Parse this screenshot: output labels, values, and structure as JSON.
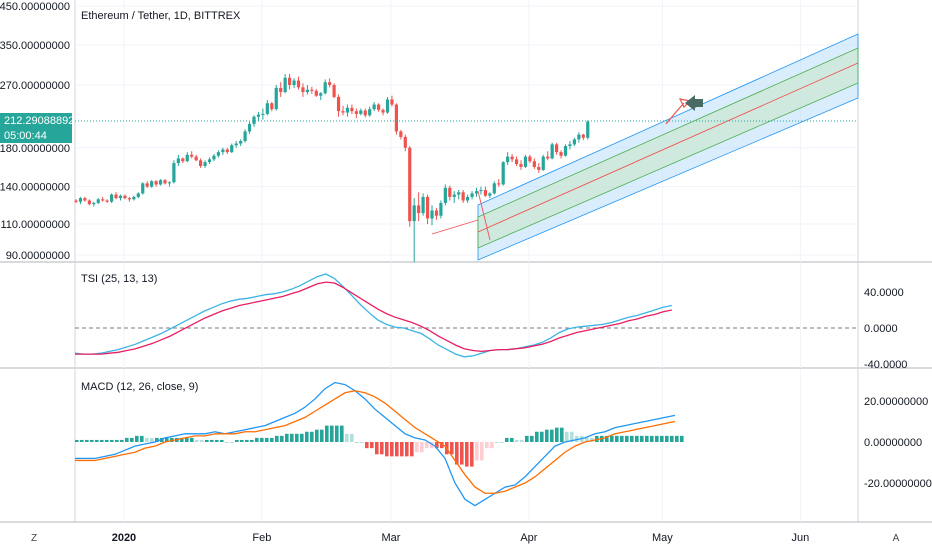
{
  "price_chart": {
    "title": "Ethereum / Tether, 1D, BITTREX",
    "current_price": "212.29088892",
    "countdown": "05:00:44"
  },
  "tsi_panel": {
    "title": "TSI (25, 13, 13)"
  },
  "macd_panel": {
    "title": "MACD (12, 26, close, 9)"
  },
  "bottom_bar": {
    "left_button": "Z",
    "right_button": "A"
  },
  "colors": {
    "up": "#26a69a",
    "down": "#ef5350",
    "tsi_line": "#3cb4e6",
    "tsi_signal": "#e91e63",
    "macd_line": "#2196f3",
    "macd_signal": "#ff6d00",
    "channel_blue": "#bbdefb",
    "channel_green": "#c8e6c9",
    "price_line": "#26a69a",
    "price_label": "#26a69a"
  },
  "chart_data": [
    {
      "type": "candlestick",
      "title": "Ethereum / Tether, 1D, BITTREX",
      "y_scale": "log",
      "y_ticks": [
        "90.00000000",
        "110.00000000",
        "140.00000000",
        "180.00000000",
        "270.00000000",
        "350.00000000",
        "450.00000000"
      ],
      "y_tick_values": [
        90,
        110,
        140,
        180,
        270,
        350,
        450
      ],
      "x_ticks": [
        "2020",
        "Feb",
        "Mar",
        "Apr",
        "May",
        "Jun"
      ],
      "x_tick_dates": [
        "2020-01-01",
        "2020-02-01",
        "2020-03-01",
        "2020-04-01",
        "2020-05-01",
        "2020-06-01"
      ],
      "last_price": 212.29,
      "ohlc_dates_start": "2019-12-21",
      "candles": [
        [
          128,
          129,
          126,
          127
        ],
        [
          127,
          131,
          125,
          130
        ],
        [
          130,
          131,
          127,
          128
        ],
        [
          128,
          129,
          124,
          125
        ],
        [
          125,
          127,
          123,
          126
        ],
        [
          126,
          130,
          125,
          129
        ],
        [
          129,
          131,
          127,
          128
        ],
        [
          128,
          129,
          126,
          127
        ],
        [
          127,
          134,
          126,
          133
        ],
        [
          133,
          135,
          129,
          130
        ],
        [
          130,
          133,
          128,
          132
        ],
        [
          132,
          133,
          129,
          130
        ],
        [
          130,
          131,
          127,
          129
        ],
        [
          129,
          132,
          128,
          131
        ],
        [
          131,
          135,
          130,
          134
        ],
        [
          134,
          144,
          133,
          143
        ],
        [
          143,
          145,
          139,
          140
        ],
        [
          140,
          146,
          139,
          145
        ],
        [
          145,
          146,
          140,
          142
        ],
        [
          142,
          147,
          141,
          146
        ],
        [
          146,
          147,
          142,
          143
        ],
        [
          143,
          145,
          140,
          144
        ],
        [
          144,
          166,
          143,
          163
        ],
        [
          163,
          172,
          160,
          168
        ],
        [
          168,
          169,
          163,
          165
        ],
        [
          165,
          175,
          164,
          172
        ],
        [
          172,
          176,
          168,
          170
        ],
        [
          170,
          172,
          165,
          166
        ],
        [
          166,
          168,
          158,
          160
        ],
        [
          160,
          166,
          158,
          164
        ],
        [
          164,
          169,
          162,
          167
        ],
        [
          167,
          173,
          165,
          171
        ],
        [
          171,
          177,
          169,
          175
        ],
        [
          175,
          180,
          172,
          178
        ],
        [
          178,
          180,
          173,
          175
        ],
        [
          175,
          185,
          174,
          183
        ],
        [
          183,
          188,
          180,
          185
        ],
        [
          185,
          190,
          182,
          188
        ],
        [
          188,
          203,
          186,
          200
        ],
        [
          200,
          213,
          197,
          210
        ],
        [
          210,
          222,
          206,
          220
        ],
        [
          220,
          227,
          214,
          223
        ],
        [
          223,
          232,
          216,
          224
        ],
        [
          224,
          245,
          222,
          240
        ],
        [
          240,
          242,
          228,
          231
        ],
        [
          231,
          270,
          229,
          265
        ],
        [
          265,
          275,
          250,
          258
        ],
        [
          258,
          290,
          256,
          283
        ],
        [
          283,
          290,
          262,
          270
        ],
        [
          270,
          282,
          265,
          278
        ],
        [
          278,
          285,
          262,
          266
        ],
        [
          266,
          273,
          250,
          258
        ],
        [
          258,
          270,
          254,
          262
        ],
        [
          262,
          267,
          255,
          260
        ],
        [
          260,
          263,
          250,
          252
        ],
        [
          252,
          258,
          245,
          256
        ],
        [
          256,
          280,
          254,
          275
        ],
        [
          275,
          282,
          266,
          270
        ],
        [
          270,
          273,
          248,
          250
        ],
        [
          250,
          254,
          220,
          228
        ],
        [
          228,
          236,
          222,
          226
        ],
        [
          226,
          238,
          220,
          233
        ],
        [
          233,
          238,
          224,
          228
        ],
        [
          228,
          232,
          218,
          224
        ],
        [
          224,
          232,
          222,
          229
        ],
        [
          229,
          232,
          219,
          222
        ],
        [
          222,
          235,
          220,
          231
        ],
        [
          231,
          242,
          228,
          238
        ],
        [
          238,
          240,
          227,
          230
        ],
        [
          230,
          232,
          222,
          226
        ],
        [
          226,
          250,
          224,
          246
        ],
        [
          246,
          252,
          235,
          238
        ],
        [
          238,
          240,
          196,
          200
        ],
        [
          200,
          202,
          190,
          193
        ],
        [
          193,
          196,
          176,
          180
        ],
        [
          180,
          182,
          108,
          112
        ],
        [
          112,
          130,
          86,
          124
        ],
        [
          124,
          135,
          112,
          118
        ],
        [
          118,
          134,
          116,
          131
        ],
        [
          131,
          133,
          110,
          114
        ],
        [
          114,
          124,
          109,
          120
        ],
        [
          120,
          122,
          113,
          116
        ],
        [
          116,
          128,
          114,
          126
        ],
        [
          126,
          142,
          124,
          139
        ],
        [
          139,
          141,
          128,
          131
        ],
        [
          131,
          136,
          126,
          133
        ],
        [
          133,
          137,
          129,
          135
        ],
        [
          135,
          137,
          126,
          128
        ],
        [
          128,
          133,
          126,
          131
        ],
        [
          131,
          136,
          129,
          134
        ],
        [
          134,
          139,
          131,
          136
        ],
        [
          136,
          140,
          133,
          137
        ],
        [
          137,
          140,
          131,
          132
        ],
        [
          132,
          135,
          130,
          134
        ],
        [
          134,
          145,
          133,
          143
        ],
        [
          143,
          147,
          140,
          142
        ],
        [
          142,
          165,
          141,
          164
        ],
        [
          164,
          175,
          161,
          170
        ],
        [
          170,
          173,
          164,
          167
        ],
        [
          167,
          170,
          160,
          162
        ],
        [
          162,
          166,
          156,
          159
        ],
        [
          159,
          172,
          158,
          170
        ],
        [
          170,
          172,
          163,
          165
        ],
        [
          165,
          168,
          157,
          159
        ],
        [
          159,
          163,
          153,
          156
        ],
        [
          156,
          172,
          155,
          170
        ],
        [
          170,
          176,
          166,
          168
        ],
        [
          168,
          186,
          167,
          184
        ],
        [
          184,
          186,
          172,
          175
        ],
        [
          175,
          177,
          168,
          171
        ],
        [
          171,
          184,
          170,
          182
        ],
        [
          182,
          188,
          178,
          184
        ],
        [
          184,
          192,
          182,
          190
        ],
        [
          190,
          199,
          186,
          196
        ],
        [
          196,
          197,
          189,
          192
        ],
        [
          192,
          215,
          190,
          213
        ]
      ]
    },
    {
      "type": "line",
      "title": "TSI (25, 13, 13)",
      "y_ticks": [
        "40.0000",
        "0.0000",
        "-40.0000"
      ],
      "y_tick_values": [
        40,
        0,
        -40
      ],
      "series": [
        {
          "values": [
            -28,
            -29,
            -29,
            -28,
            -26,
            -24,
            -21,
            -18,
            -14,
            -10,
            -6,
            -1,
            4,
            9,
            14,
            19,
            23,
            27,
            30,
            32,
            33,
            35,
            37,
            38,
            40,
            43,
            47,
            52,
            57,
            60,
            55,
            46,
            36,
            26,
            17,
            9,
            4,
            1,
            0,
            -3,
            -6,
            -12,
            -19,
            -24,
            -29,
            -32,
            -31,
            -28,
            -25,
            -24,
            -24,
            -23,
            -21,
            -19,
            -16,
            -11,
            -5,
            -1,
            1,
            2,
            3,
            4,
            6,
            9,
            12,
            14,
            17,
            20,
            23,
            25
          ]
        },
        {
          "values": [
            -29,
            -29,
            -29,
            -29,
            -28,
            -27,
            -25,
            -23,
            -20,
            -17,
            -13,
            -9,
            -4,
            1,
            6,
            11,
            15,
            19,
            22,
            25,
            27,
            29,
            31,
            33,
            35,
            38,
            41,
            45,
            49,
            51,
            50,
            45,
            39,
            33,
            27,
            21,
            16,
            12,
            9,
            6,
            2,
            -3,
            -9,
            -14,
            -19,
            -23,
            -25,
            -26,
            -25,
            -24,
            -24,
            -23,
            -22,
            -20,
            -18,
            -15,
            -11,
            -8,
            -5,
            -3,
            -1,
            1,
            3,
            5,
            8,
            10,
            13,
            15,
            18,
            20
          ]
        }
      ]
    },
    {
      "type": "bar+line",
      "title": "MACD (12, 26, close, 9)",
      "y_ticks": [
        "20.00000000",
        "0.00000000",
        "-20.00000000"
      ],
      "y_tick_values": [
        20,
        0,
        -20
      ],
      "series": [
        {
          "values": [
            -8,
            -8,
            -8,
            -7,
            -6,
            -4,
            -2,
            -1,
            0,
            2,
            3,
            4,
            4,
            4,
            5,
            4,
            5,
            6,
            7,
            8,
            10,
            12,
            14,
            17,
            21,
            26,
            29,
            28,
            25,
            21,
            16,
            12,
            8,
            4,
            2,
            1,
            -2,
            -8,
            -20,
            -28,
            -31,
            -28,
            -25,
            -22,
            -21,
            -17,
            -12,
            -7,
            -2,
            0,
            1,
            2,
            4,
            5,
            7,
            8,
            9,
            10,
            11,
            12,
            13
          ]
        },
        {
          "values": [
            -9,
            -9,
            -9,
            -8,
            -7,
            -6,
            -5,
            -3,
            -2,
            0,
            1,
            2,
            3,
            3,
            4,
            4,
            4,
            5,
            5,
            6,
            7,
            8,
            10,
            12,
            15,
            18,
            21,
            24,
            25,
            24,
            22,
            19,
            15,
            11,
            7,
            4,
            1,
            -2,
            -9,
            -16,
            -22,
            -25,
            -25,
            -24,
            -22,
            -20,
            -17,
            -13,
            -9,
            -5,
            -2,
            0,
            1,
            2,
            4,
            5,
            6,
            7,
            8,
            9,
            10
          ]
        }
      ]
    }
  ]
}
